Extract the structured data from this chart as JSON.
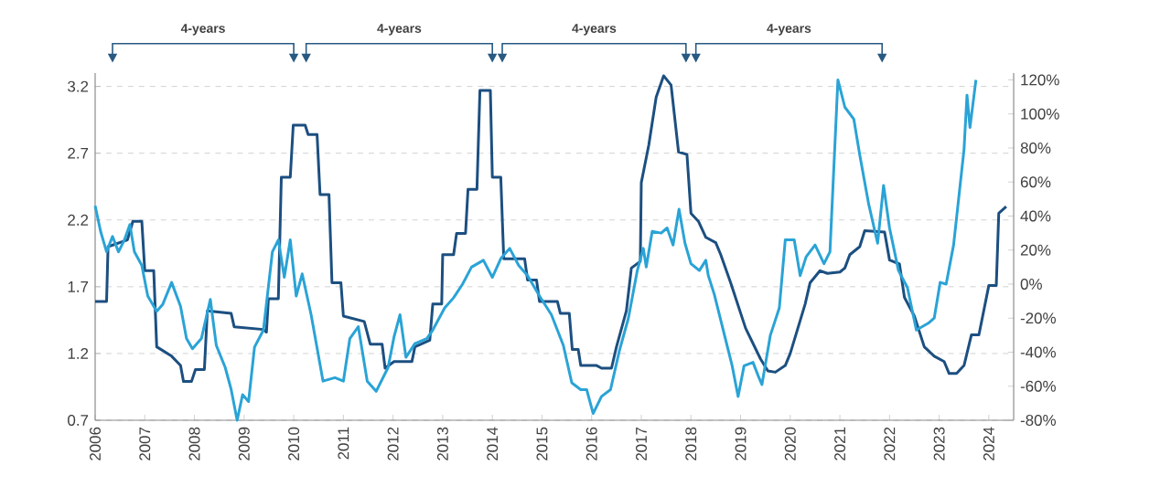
{
  "chart_data": {
    "type": "line",
    "annotations": [
      "4-years",
      "4-years",
      "4-years",
      "4-years"
    ],
    "xlim": [
      2006,
      2024.5
    ],
    "xticks": [
      2006,
      2007,
      2008,
      2009,
      2010,
      2011,
      2012,
      2013,
      2014,
      2015,
      2016,
      2017,
      2018,
      2019,
      2020,
      2021,
      2022,
      2023,
      2024
    ],
    "ylim": [
      0.7,
      3.3
    ],
    "yticks": [
      0.7,
      1.2,
      1.7,
      2.2,
      2.7,
      3.2
    ],
    "y2lim": [
      -80,
      124
    ],
    "y2ticks": [
      {
        "value": -80,
        "label": "-80%"
      },
      {
        "value": -60,
        "label": "-60%"
      },
      {
        "value": -40,
        "label": "-40%"
      },
      {
        "value": -20,
        "label": "-20%"
      },
      {
        "value": 0,
        "label": "0%"
      },
      {
        "value": 20,
        "label": "20%"
      },
      {
        "value": 40,
        "label": "40%"
      },
      {
        "value": 60,
        "label": "60%"
      },
      {
        "value": 80,
        "label": "80%"
      },
      {
        "value": 100,
        "label": "100%"
      },
      {
        "value": 120,
        "label": "120%"
      }
    ],
    "grid": "y",
    "legend": false,
    "marker": "none",
    "line_style": "solid",
    "series": [
      {
        "color": "#1c4f80",
        "x": [
          2006.0,
          2006.23,
          2006.26,
          2006.65,
          2006.76,
          2006.94,
          2007.0,
          2007.18,
          2007.24,
          2007.54,
          2007.72,
          2007.78,
          2007.94,
          2008.02,
          2008.2,
          2008.26,
          2008.74,
          2008.8,
          2009.39,
          2009.45,
          2009.49,
          2009.69,
          2009.75,
          2009.93,
          2009.99,
          2010.23,
          2010.29,
          2010.47,
          2010.53,
          2010.71,
          2010.77,
          2010.95,
          2011.0,
          2011.42,
          2011.54,
          2011.78,
          2011.84,
          2012.02,
          2012.38,
          2012.44,
          2012.74,
          2012.8,
          2012.98,
          2013.0,
          2013.22,
          2013.28,
          2013.46,
          2013.51,
          2013.69,
          2013.75,
          2013.96,
          2014.0,
          2014.17,
          2014.23,
          2014.65,
          2014.71,
          2014.89,
          2014.95,
          2015.31,
          2015.37,
          2015.55,
          2015.61,
          2015.73,
          2015.78,
          2016.1,
          2016.2,
          2016.4,
          2016.5,
          2016.7,
          2016.8,
          2016.98,
          2017.0,
          2017.15,
          2017.3,
          2017.45,
          2017.6,
          2017.75,
          2017.92,
          2018.0,
          2018.15,
          2018.3,
          2018.5,
          2018.6,
          2018.8,
          2019.1,
          2019.4,
          2019.55,
          2019.7,
          2019.9,
          2020.0,
          2020.3,
          2020.4,
          2020.6,
          2020.75,
          2021.0,
          2021.1,
          2021.2,
          2021.4,
          2021.5,
          2021.9,
          2022.0,
          2022.2,
          2022.3,
          2022.5,
          2022.7,
          2022.9,
          2023.1,
          2023.2,
          2023.35,
          2023.5,
          2023.65,
          2023.8,
          2024.0,
          2024.15,
          2024.2,
          2024.35
        ],
        "values": [
          1.59,
          1.59,
          2.0,
          2.05,
          2.19,
          2.19,
          1.82,
          1.82,
          1.25,
          1.18,
          1.11,
          0.99,
          0.99,
          1.08,
          1.08,
          1.52,
          1.5,
          1.4,
          1.38,
          1.36,
          1.61,
          1.61,
          2.52,
          2.52,
          2.91,
          2.91,
          2.84,
          2.84,
          2.39,
          2.39,
          1.73,
          1.73,
          1.48,
          1.44,
          1.27,
          1.27,
          1.09,
          1.14,
          1.14,
          1.25,
          1.3,
          1.57,
          1.57,
          1.94,
          1.94,
          2.1,
          2.1,
          2.43,
          2.43,
          3.17,
          3.17,
          2.52,
          2.52,
          1.91,
          1.91,
          1.75,
          1.75,
          1.59,
          1.59,
          1.5,
          1.5,
          1.23,
          1.23,
          1.11,
          1.11,
          1.09,
          1.09,
          1.25,
          1.52,
          1.84,
          1.89,
          2.48,
          2.76,
          3.12,
          3.28,
          3.21,
          2.71,
          2.69,
          2.25,
          2.19,
          2.07,
          2.03,
          1.94,
          1.73,
          1.39,
          1.16,
          1.07,
          1.06,
          1.11,
          1.2,
          1.57,
          1.73,
          1.82,
          1.8,
          1.81,
          1.84,
          1.94,
          2.0,
          2.12,
          2.11,
          1.9,
          1.87,
          1.62,
          1.48,
          1.25,
          1.18,
          1.14,
          1.05,
          1.05,
          1.11,
          1.34,
          1.34,
          1.71,
          1.71,
          2.25,
          2.3
        ]
      },
      {
        "color": "#2aa3d6",
        "axis": "y2",
        "x": [
          2006.0,
          2006.11,
          2006.23,
          2006.35,
          2006.47,
          2006.59,
          2006.7,
          2006.79,
          2006.94,
          2007.06,
          2007.24,
          2007.36,
          2007.54,
          2007.72,
          2007.84,
          2007.96,
          2008.14,
          2008.32,
          2008.44,
          2008.62,
          2008.74,
          2008.86,
          2008.97,
          2009.09,
          2009.21,
          2009.39,
          2009.57,
          2009.69,
          2009.81,
          2009.93,
          2010.05,
          2010.17,
          2010.35,
          2010.59,
          2010.83,
          2011.0,
          2011.13,
          2011.3,
          2011.48,
          2011.66,
          2011.9,
          2012.02,
          2012.14,
          2012.26,
          2012.44,
          2012.68,
          2012.8,
          2013.04,
          2013.22,
          2013.4,
          2013.58,
          2013.82,
          2014.0,
          2014.17,
          2014.35,
          2014.53,
          2014.71,
          2014.95,
          2015.19,
          2015.43,
          2015.6,
          2015.78,
          2015.9,
          2016.03,
          2016.2,
          2016.38,
          2016.56,
          2016.74,
          2016.92,
          2017.04,
          2017.1,
          2017.22,
          2017.4,
          2017.52,
          2017.64,
          2017.76,
          2017.88,
          2018.0,
          2018.17,
          2018.3,
          2018.35,
          2018.47,
          2018.65,
          2018.83,
          2018.95,
          2019.07,
          2019.25,
          2019.37,
          2019.43,
          2019.6,
          2019.78,
          2019.9,
          2020.08,
          2020.2,
          2020.32,
          2020.5,
          2020.68,
          2020.8,
          2020.96,
          2021.1,
          2021.28,
          2021.4,
          2021.58,
          2021.76,
          2021.88,
          2022.0,
          2022.18,
          2022.36,
          2022.54,
          2022.78,
          2022.9,
          2023.02,
          2023.14,
          2023.29,
          2023.5,
          2023.56,
          2023.62,
          2023.74
        ],
        "values": [
          46,
          31,
          19,
          28,
          19,
          26,
          35,
          19,
          11,
          -7,
          -16,
          -12,
          1,
          -13,
          -32,
          -38,
          -32,
          -9,
          -36,
          -49,
          -62,
          -80,
          -65,
          -69,
          -37,
          -27,
          19,
          26,
          4,
          26,
          -7,
          6,
          -18,
          -57,
          -55,
          -57,
          -32,
          -25,
          -57,
          -63,
          -49,
          -31,
          -18,
          -43,
          -35,
          -32,
          -27,
          -14,
          -8,
          0,
          10,
          14,
          4,
          15,
          21,
          11,
          5,
          -7,
          -18,
          -36,
          -58,
          -62,
          -62,
          -76,
          -66,
          -62,
          -39,
          -20,
          8,
          21,
          10,
          31,
          30,
          33,
          23,
          44,
          24,
          12,
          8,
          14,
          5,
          -6,
          -27,
          -48,
          -66,
          -48,
          -46,
          -55,
          -59,
          -30,
          -14,
          26,
          26,
          5,
          16,
          23,
          12,
          19,
          120,
          104,
          97,
          76,
          47,
          24,
          58,
          33,
          8,
          -2,
          -27,
          -23,
          -20,
          1,
          0,
          23,
          79,
          111,
          92,
          120
        ]
      }
    ]
  }
}
